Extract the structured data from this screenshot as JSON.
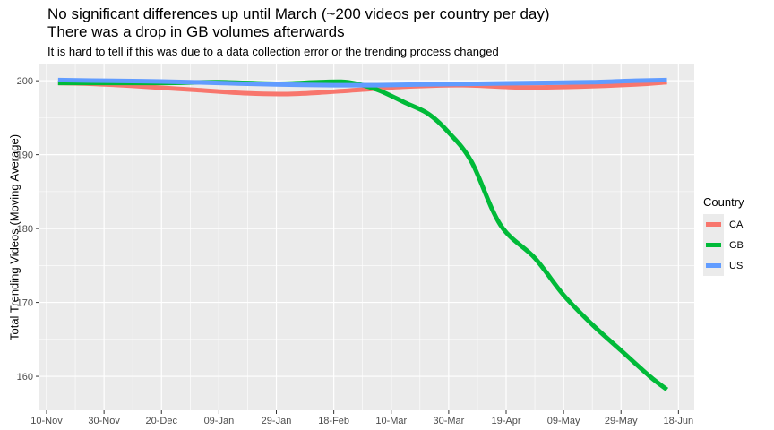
{
  "chart_data": {
    "type": "line",
    "title_lines": [
      "No significant differences up until March (~200 videos per country per day)",
      "There was a drop in GB volumes afterwards"
    ],
    "subtitle": "It is hard to tell if this was due to a data collection error or the trending process changed",
    "xlabel": "",
    "ylabel": "Total Trending Videos (Moving Average)",
    "x_ticks": [
      "10-Nov",
      "30-Nov",
      "20-Dec",
      "09-Jan",
      "29-Jan",
      "18-Feb",
      "10-Mar",
      "30-Mar",
      "19-Apr",
      "09-May",
      "29-May",
      "18-Jun"
    ],
    "x_tick_days": [
      0,
      20,
      40,
      60,
      80,
      100,
      120,
      140,
      160,
      180,
      200,
      220
    ],
    "x_range_days": [
      -2.5,
      225.5
    ],
    "y_ticks": [
      160,
      170,
      180,
      190,
      200
    ],
    "ylim": [
      155.4,
      202.2
    ],
    "grid": true,
    "legend": {
      "title": "Country",
      "position": "right"
    },
    "series": [
      {
        "name": "CA",
        "color": "#F8766D",
        "x": [
          4,
          15,
          30,
          50,
          70,
          83,
          95,
          110,
          125,
          145,
          165,
          185,
          205,
          216
        ],
        "y": [
          199.7,
          199.6,
          199.3,
          198.8,
          198.3,
          198.2,
          198.4,
          198.8,
          199.2,
          199.4,
          199.1,
          199.2,
          199.5,
          199.8
        ]
      },
      {
        "name": "GB",
        "color": "#00BA38",
        "x": [
          4,
          20,
          40,
          60,
          80,
          95,
          105,
          115,
          125,
          133,
          140,
          148,
          158,
          170,
          180,
          190,
          200,
          210,
          216
        ],
        "y": [
          199.7,
          199.7,
          199.7,
          199.8,
          199.6,
          199.8,
          199.8,
          198.8,
          197.0,
          195.5,
          193.0,
          189.0,
          180.5,
          176.0,
          171.0,
          167.0,
          163.5,
          160.0,
          158.2
        ]
      },
      {
        "name": "US",
        "color": "#619CFF",
        "x": [
          4,
          20,
          40,
          60,
          80,
          100,
          115,
          130,
          150,
          170,
          190,
          205,
          216
        ],
        "y": [
          200.1,
          200.0,
          199.9,
          199.7,
          199.5,
          199.4,
          199.4,
          199.5,
          199.6,
          199.7,
          199.8,
          200.0,
          200.1
        ]
      }
    ]
  }
}
